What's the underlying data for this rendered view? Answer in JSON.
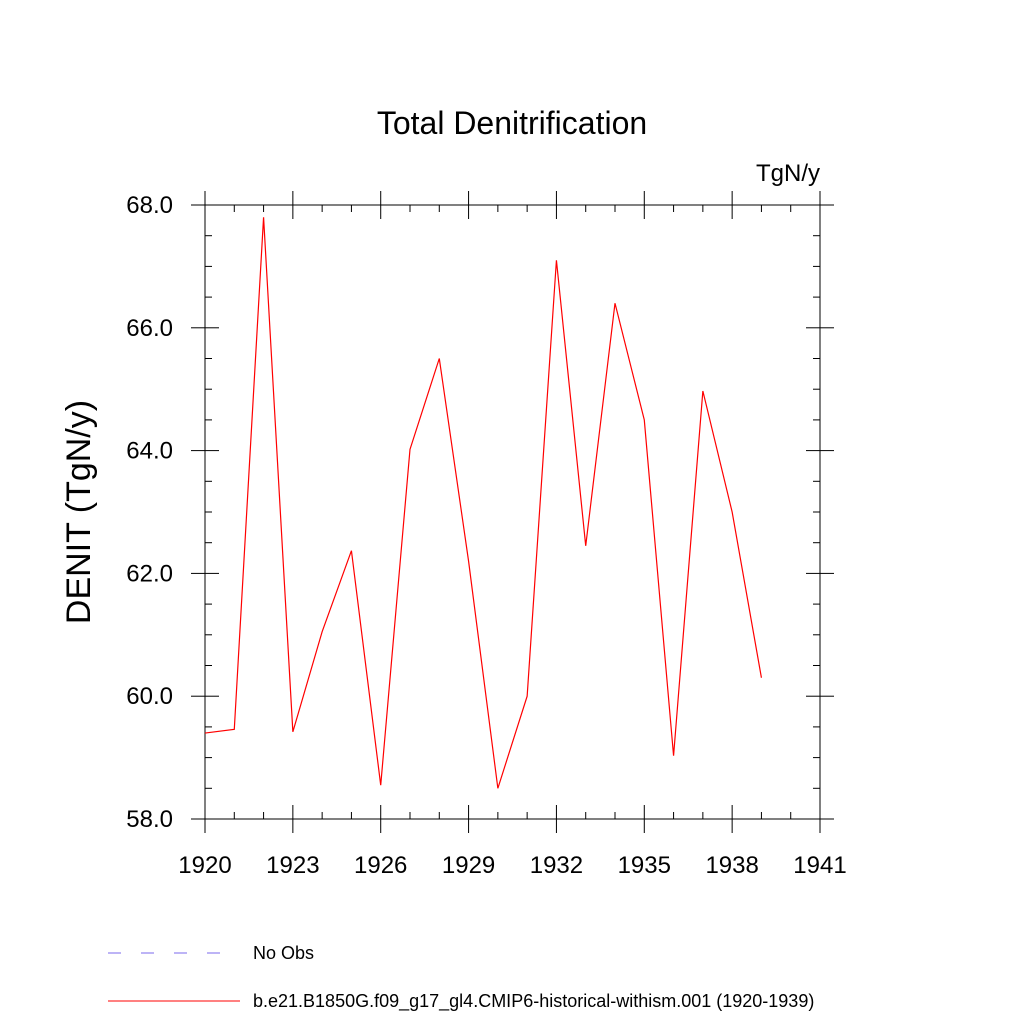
{
  "chart_data": {
    "type": "line",
    "title": "Total Denitrification",
    "units": "TgN/y",
    "ylabel": "DENIT  (TgN/y)",
    "xlabel": "",
    "xlim": [
      1920,
      1941
    ],
    "ylim": [
      58.0,
      68.0
    ],
    "x_ticks": [
      "1920",
      "1923",
      "1926",
      "1929",
      "1932",
      "1935",
      "1938",
      "1941"
    ],
    "y_ticks": [
      "58.0",
      "60.0",
      "62.0",
      "64.0",
      "66.0",
      "68.0"
    ],
    "grid": false,
    "legend_position": "bottom",
    "x": [
      1920,
      1921,
      1922,
      1923,
      1924,
      1925,
      1926,
      1927,
      1928,
      1929,
      1930,
      1931,
      1932,
      1933,
      1934,
      1935,
      1936,
      1937,
      1938,
      1939
    ],
    "series": [
      {
        "name": "b.e21.B1850G.f09_g17_gl4.CMIP6-historical-withism.001 (1920-1939)",
        "color": "#ff0000",
        "style": "solid",
        "values": [
          59.4,
          59.46,
          67.8,
          59.42,
          61.05,
          62.37,
          58.55,
          64.02,
          65.5,
          62.2,
          58.5,
          60.0,
          67.1,
          62.45,
          66.4,
          64.5,
          59.03,
          64.97,
          63.0,
          60.3
        ]
      }
    ],
    "legend": [
      {
        "label": "No Obs",
        "color": "#7b68ee",
        "style": "dashed"
      },
      {
        "label": "b.e21.B1850G.f09_g17_gl4.CMIP6-historical-withism.001 (1920-1939)",
        "color": "#ff0000",
        "style": "solid"
      }
    ]
  }
}
